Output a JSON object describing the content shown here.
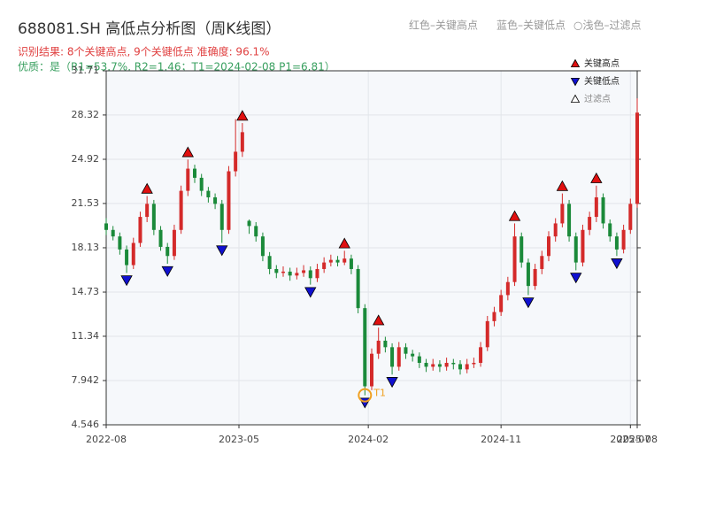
{
  "chart_data": {
    "type": "candlestick",
    "title": "688081.SH 高低点分析图（周K线图）",
    "subtitle": "识别结果: 8个关键高点, 9个关键低点  准确度: 96.1%",
    "quality_note": "优质：是（R1=53.7%, R2=1.46；T1=2024-02-08 P1=6.81）",
    "header_legend": [
      "红色–关键高点",
      "蓝色–关键低点",
      "○浅色–过滤点"
    ],
    "up_color": "#d42a2a",
    "down_color": "#1b8a3a",
    "xlim": [
      0,
      156
    ],
    "xticks": [
      {
        "value": 0,
        "label": "2022-08"
      },
      {
        "value": 39,
        "label": "2023-05"
      },
      {
        "value": 77,
        "label": "2024-02"
      },
      {
        "value": 116,
        "label": "2024-11"
      },
      {
        "value": 154,
        "label": "2025-07"
      },
      {
        "value": 156,
        "label": "2025-08"
      }
    ],
    "ylim": [
      4.546,
      31.71
    ],
    "yticks": [
      4.546,
      7.942,
      11.34,
      14.73,
      18.13,
      21.53,
      24.92,
      28.32,
      31.71
    ],
    "grid": true,
    "candles": {
      "x": [
        0,
        2,
        4,
        6,
        8,
        10,
        12,
        14,
        16,
        18,
        20,
        22,
        24,
        26,
        28,
        30,
        32,
        34,
        36,
        38,
        40,
        42,
        44,
        46,
        48,
        50,
        52,
        54,
        56,
        58,
        60,
        62,
        64,
        66,
        68,
        70,
        72,
        74,
        76,
        78,
        80,
        82,
        84,
        86,
        88,
        90,
        92,
        94,
        96,
        98,
        100,
        102,
        104,
        106,
        108,
        110,
        112,
        114,
        116,
        118,
        120,
        122,
        124,
        126,
        128,
        130,
        132,
        134,
        136,
        138,
        140,
        142,
        144,
        146,
        148,
        150,
        152,
        154,
        156
      ],
      "open": [
        20.0,
        19.5,
        19.0,
        18.0,
        16.8,
        18.5,
        20.5,
        21.5,
        19.5,
        18.2,
        17.5,
        19.5,
        22.5,
        24.2,
        23.5,
        22.5,
        22.0,
        21.5,
        19.5,
        24.0,
        25.5,
        20.2,
        19.8,
        19.0,
        17.5,
        16.5,
        16.2,
        16.3,
        16.0,
        16.2,
        16.4,
        15.8,
        16.5,
        17.0,
        17.2,
        17.0,
        17.3,
        16.5,
        13.5,
        7.5,
        10.0,
        11.0,
        10.5,
        9.0,
        10.5,
        10.0,
        9.8,
        9.3,
        9.0,
        9.2,
        9.0,
        9.3,
        9.2,
        8.8,
        9.2,
        9.3,
        10.5,
        12.5,
        13.2,
        14.5,
        15.5,
        19.0,
        17.0,
        15.2,
        16.5,
        17.5,
        19.0,
        20.0,
        21.5,
        19.0,
        17.0,
        19.5,
        20.5,
        22.0,
        20.0,
        19.0,
        18.0,
        19.5,
        21.5
      ],
      "high": [
        20.4,
        19.8,
        19.3,
        18.3,
        18.9,
        20.9,
        22.1,
        21.8,
        19.8,
        18.5,
        19.9,
        22.9,
        24.9,
        24.5,
        23.8,
        22.8,
        22.3,
        21.8,
        24.4,
        28.0,
        27.7,
        20.3,
        20.1,
        19.3,
        17.8,
        16.8,
        16.7,
        16.6,
        16.6,
        16.8,
        16.7,
        16.9,
        17.4,
        17.6,
        17.5,
        17.9,
        17.6,
        16.8,
        13.8,
        10.4,
        12.0,
        11.3,
        10.8,
        10.9,
        10.8,
        10.3,
        10.1,
        9.6,
        9.6,
        9.5,
        9.7,
        9.6,
        9.5,
        9.6,
        9.7,
        10.9,
        12.9,
        13.6,
        14.9,
        15.9,
        20.0,
        19.3,
        17.3,
        16.9,
        17.9,
        19.4,
        20.4,
        22.3,
        21.8,
        19.3,
        19.9,
        20.9,
        22.9,
        22.3,
        20.3,
        19.3,
        19.9,
        21.9,
        29.6
      ],
      "low": [
        19.1,
        18.7,
        17.6,
        16.2,
        16.5,
        18.2,
        20.1,
        19.1,
        17.9,
        16.9,
        17.2,
        19.2,
        22.1,
        23.1,
        22.1,
        21.6,
        21.1,
        18.5,
        19.2,
        23.6,
        25.1,
        19.2,
        18.6,
        17.1,
        16.1,
        15.8,
        15.9,
        15.6,
        15.7,
        15.9,
        15.3,
        15.5,
        16.2,
        16.7,
        16.7,
        16.8,
        16.1,
        13.1,
        6.81,
        7.2,
        9.6,
        10.1,
        8.4,
        8.7,
        9.6,
        9.4,
        8.9,
        8.6,
        8.7,
        8.6,
        8.7,
        8.8,
        8.4,
        8.5,
        8.9,
        9.0,
        10.2,
        12.1,
        12.9,
        14.1,
        15.2,
        16.6,
        14.5,
        14.9,
        16.1,
        17.1,
        18.6,
        19.7,
        18.6,
        16.4,
        16.7,
        19.1,
        20.1,
        19.6,
        18.6,
        17.5,
        17.7,
        19.2,
        21.2
      ],
      "close": [
        19.5,
        19.0,
        18.0,
        16.8,
        18.5,
        20.5,
        21.5,
        19.5,
        18.2,
        17.5,
        19.5,
        22.5,
        24.2,
        23.5,
        22.5,
        22.0,
        21.5,
        19.5,
        24.0,
        25.5,
        27.0,
        19.8,
        19.0,
        17.5,
        16.5,
        16.2,
        16.3,
        16.0,
        16.2,
        16.4,
        15.8,
        16.5,
        17.0,
        17.2,
        17.0,
        17.3,
        16.5,
        13.5,
        7.5,
        10.0,
        11.0,
        10.5,
        9.0,
        10.5,
        10.0,
        9.8,
        9.3,
        9.0,
        9.2,
        9.0,
        9.3,
        9.2,
        8.8,
        9.2,
        9.3,
        10.5,
        12.5,
        13.2,
        14.5,
        15.5,
        19.0,
        17.0,
        15.2,
        16.5,
        17.5,
        19.0,
        20.0,
        21.5,
        19.0,
        17.0,
        19.5,
        20.5,
        22.0,
        20.0,
        19.0,
        18.0,
        19.5,
        21.5,
        28.5
      ]
    },
    "series": [
      {
        "name": "关键高点",
        "color": "#e01010",
        "marker": "up",
        "x": [
          12,
          24,
          40,
          70,
          80,
          120,
          134,
          144
        ],
        "values": [
          22.1,
          24.9,
          27.7,
          17.9,
          12.0,
          20.0,
          22.3,
          22.9
        ]
      },
      {
        "name": "关键低点",
        "color": "#1010d0",
        "marker": "down",
        "x": [
          6,
          18,
          34,
          60,
          76,
          84,
          124,
          138,
          150
        ],
        "values": [
          16.2,
          16.9,
          18.5,
          15.3,
          6.81,
          8.4,
          14.5,
          16.4,
          17.5
        ]
      },
      {
        "name": "过滤点",
        "color": "#ffffff",
        "marker": "up",
        "x": [],
        "values": []
      }
    ],
    "annotation": {
      "text": "T1",
      "x": 76,
      "y": 6.81,
      "color": "#f0a020"
    }
  }
}
